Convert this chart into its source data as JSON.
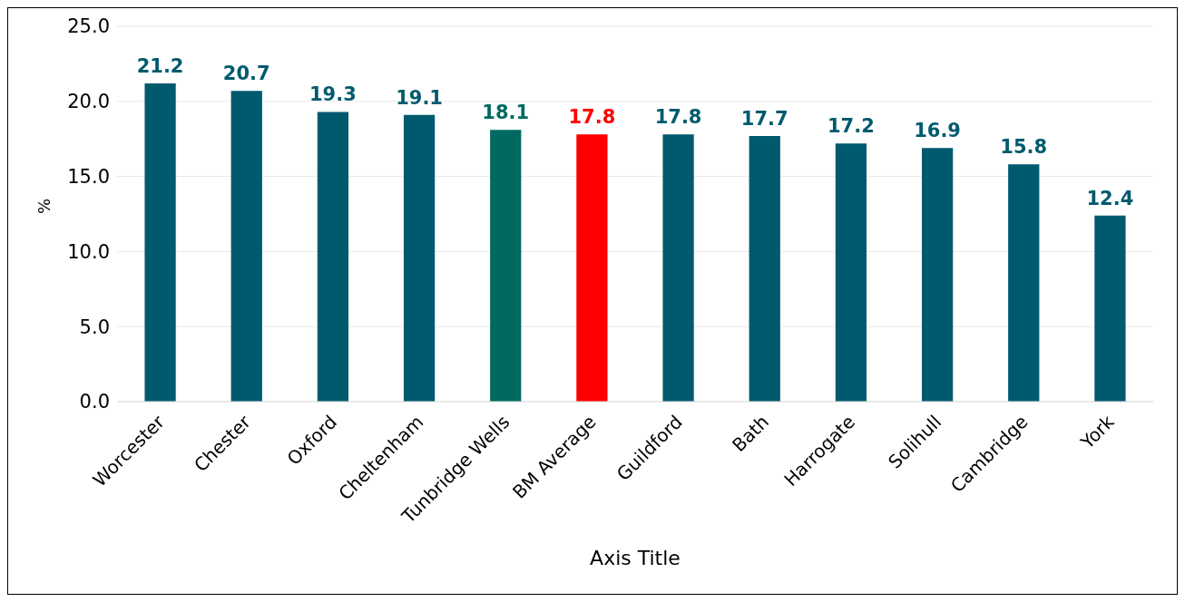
{
  "chart_data": {
    "type": "bar",
    "xlabel": "Axis Title",
    "ylabel": "%",
    "categories": [
      "Worcester",
      "Chester",
      "Oxford",
      "Cheltenham",
      "Tunbridge Wells",
      "BM Average",
      "Guildford",
      "Bath",
      "Harrogate",
      "Solihull",
      "Cambridge",
      "York"
    ],
    "values": [
      21.2,
      20.7,
      19.3,
      19.1,
      18.1,
      17.8,
      17.8,
      17.7,
      17.2,
      16.9,
      15.8,
      12.4
    ],
    "colors": [
      "#005a6e",
      "#005a6e",
      "#005a6e",
      "#005a6e",
      "#006a60",
      "#ff0000",
      "#005a6e",
      "#005a6e",
      "#005a6e",
      "#005a6e",
      "#005a6e",
      "#005a6e"
    ],
    "ylim": [
      0,
      25
    ],
    "yticks": [
      {
        "value": 0,
        "label": "0.0"
      },
      {
        "value": 5,
        "label": "5.0"
      },
      {
        "value": 10,
        "label": "10.0"
      },
      {
        "value": 15,
        "label": "15.0"
      },
      {
        "value": 20,
        "label": "20.0"
      },
      {
        "value": 25,
        "label": "25.0"
      }
    ],
    "grid": "y",
    "data_labels": true
  }
}
